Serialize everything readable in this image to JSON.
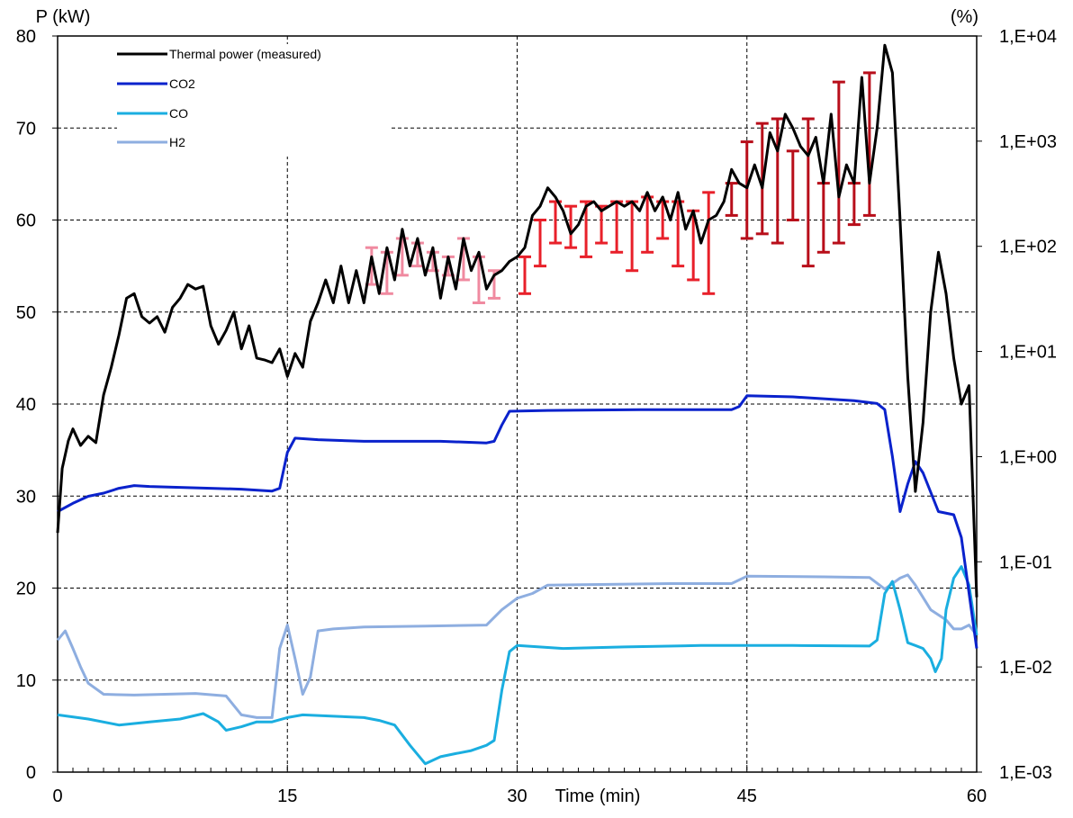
{
  "chart_data": {
    "type": "line",
    "y_left_label": "P (kW)",
    "y_right_label": "(%)",
    "x_label": "Time (min)",
    "xlim": [
      0,
      60
    ],
    "ylim_left": [
      0,
      80
    ],
    "ylim_right": [
      0.001,
      10000
    ],
    "y_right_scale": "log",
    "x_ticks": [
      "0",
      "15",
      "30",
      "45",
      "60"
    ],
    "y_left_ticks": [
      "0",
      "10",
      "20",
      "30",
      "40",
      "50",
      "60",
      "70",
      "80"
    ],
    "y_right_ticks": [
      "1,E-03",
      "1,E-02",
      "1,E-01",
      "1,E+00",
      "1,E+01",
      "1,E+02",
      "1,E+03",
      "1,E+04"
    ],
    "grid": "dashed at major x ticks and major left-y ticks",
    "legend_position": "top-left",
    "series": [
      {
        "name": "Thermal power (measured)",
        "color": "#000000",
        "axis": "left",
        "points": [
          [
            0,
            26
          ],
          [
            0.3,
            33
          ],
          [
            0.7,
            36
          ],
          [
            1,
            37.3
          ],
          [
            1.5,
            35.5
          ],
          [
            2,
            36.5
          ],
          [
            2.5,
            35.8
          ],
          [
            3,
            41
          ],
          [
            3.5,
            44
          ],
          [
            4,
            47.5
          ],
          [
            4.5,
            51.5
          ],
          [
            5,
            52
          ],
          [
            5.5,
            49.5
          ],
          [
            6,
            48.8
          ],
          [
            6.5,
            49.5
          ],
          [
            7,
            47.8
          ],
          [
            7.5,
            50.5
          ],
          [
            8,
            51.5
          ],
          [
            8.5,
            53
          ],
          [
            9,
            52.5
          ],
          [
            9.5,
            52.8
          ],
          [
            10,
            48.5
          ],
          [
            10.5,
            46.5
          ],
          [
            11,
            48
          ],
          [
            11.5,
            50
          ],
          [
            12,
            46
          ],
          [
            12.5,
            48.5
          ],
          [
            13,
            45
          ],
          [
            13.5,
            44.8
          ],
          [
            14,
            44.5
          ],
          [
            14.5,
            46
          ],
          [
            15,
            43
          ],
          [
            15.5,
            45.5
          ],
          [
            16,
            44
          ],
          [
            16.5,
            49
          ],
          [
            17,
            51
          ],
          [
            17.5,
            53.5
          ],
          [
            18,
            51
          ],
          [
            18.5,
            55
          ],
          [
            19,
            51
          ],
          [
            19.5,
            54.5
          ],
          [
            20,
            51
          ],
          [
            20.5,
            56
          ],
          [
            21,
            52
          ],
          [
            21.5,
            57
          ],
          [
            22,
            53.5
          ],
          [
            22.5,
            59
          ],
          [
            23,
            55
          ],
          [
            23.5,
            58
          ],
          [
            24,
            54
          ],
          [
            24.5,
            57
          ],
          [
            25,
            51.5
          ],
          [
            25.5,
            56
          ],
          [
            26,
            52.5
          ],
          [
            26.5,
            58
          ],
          [
            27,
            54.5
          ],
          [
            27.5,
            56.5
          ],
          [
            28,
            52.5
          ],
          [
            28.5,
            54
          ],
          [
            29,
            54.5
          ],
          [
            29.5,
            55.5
          ],
          [
            30,
            56
          ],
          [
            30.5,
            57
          ],
          [
            31,
            60.5
          ],
          [
            31.5,
            61.5
          ],
          [
            32,
            63.5
          ],
          [
            32.5,
            62.5
          ],
          [
            33,
            61
          ],
          [
            33.5,
            58.5
          ],
          [
            34,
            59.5
          ],
          [
            34.5,
            61.5
          ],
          [
            35,
            62
          ],
          [
            35.5,
            61
          ],
          [
            36,
            61.5
          ],
          [
            36.5,
            62
          ],
          [
            37,
            61.5
          ],
          [
            37.5,
            62
          ],
          [
            38,
            61
          ],
          [
            38.5,
            63
          ],
          [
            39,
            61
          ],
          [
            39.5,
            62.5
          ],
          [
            40,
            60
          ],
          [
            40.5,
            63
          ],
          [
            41,
            59
          ],
          [
            41.5,
            61
          ],
          [
            42,
            57.5
          ],
          [
            42.5,
            60
          ],
          [
            43,
            60.5
          ],
          [
            43.5,
            62
          ],
          [
            44,
            65.5
          ],
          [
            44.5,
            64
          ],
          [
            45,
            63.5
          ],
          [
            45.5,
            66
          ],
          [
            46,
            63.5
          ],
          [
            46.5,
            69.5
          ],
          [
            47,
            67.5
          ],
          [
            47.5,
            71.5
          ],
          [
            48,
            70
          ],
          [
            48.5,
            68
          ],
          [
            49,
            67
          ],
          [
            49.5,
            69
          ],
          [
            50,
            64
          ],
          [
            50.5,
            71.5
          ],
          [
            51,
            62.5
          ],
          [
            51.5,
            66
          ],
          [
            52,
            64
          ],
          [
            52.5,
            75.5
          ],
          [
            53,
            64
          ],
          [
            53.5,
            70
          ],
          [
            54,
            79
          ],
          [
            54.5,
            76
          ],
          [
            55,
            60
          ],
          [
            55.5,
            43
          ],
          [
            56,
            30.5
          ],
          [
            56.5,
            38
          ],
          [
            57,
            50
          ],
          [
            57.5,
            56.5
          ],
          [
            58,
            52
          ],
          [
            58.5,
            45
          ],
          [
            59,
            40
          ],
          [
            59.5,
            42
          ],
          [
            60,
            19
          ]
        ]
      },
      {
        "name": "CO2",
        "color": "#0a22cc",
        "axis": "right",
        "points": [
          [
            0,
            0.3
          ],
          [
            1,
            0.36
          ],
          [
            2,
            0.42
          ],
          [
            3,
            0.45
          ],
          [
            4,
            0.5
          ],
          [
            5,
            0.53
          ],
          [
            6,
            0.52
          ],
          [
            8,
            0.51
          ],
          [
            10,
            0.5
          ],
          [
            12,
            0.49
          ],
          [
            14,
            0.47
          ],
          [
            14.5,
            0.5
          ],
          [
            15,
            1.1
          ],
          [
            15.5,
            1.5
          ],
          [
            17,
            1.45
          ],
          [
            20,
            1.4
          ],
          [
            25,
            1.4
          ],
          [
            28,
            1.35
          ],
          [
            28.5,
            1.4
          ],
          [
            29,
            2
          ],
          [
            29.5,
            2.7
          ],
          [
            32,
            2.75
          ],
          [
            38,
            2.8
          ],
          [
            44,
            2.8
          ],
          [
            44.5,
            3
          ],
          [
            45,
            3.8
          ],
          [
            48,
            3.7
          ],
          [
            52,
            3.4
          ],
          [
            53.5,
            3.2
          ],
          [
            54,
            2.8
          ],
          [
            54.5,
            1
          ],
          [
            55,
            0.3
          ],
          [
            55.5,
            0.55
          ],
          [
            56,
            0.9
          ],
          [
            56.5,
            0.7
          ],
          [
            57.5,
            0.3
          ],
          [
            58.5,
            0.28
          ],
          [
            59,
            0.17
          ],
          [
            60,
            0.015
          ]
        ]
      },
      {
        "name": "CO",
        "color": "#1aaee0",
        "axis": "right",
        "points": [
          [
            0,
            0.0035
          ],
          [
            2,
            0.0032
          ],
          [
            4,
            0.0028
          ],
          [
            6,
            0.003
          ],
          [
            8,
            0.0032
          ],
          [
            9.5,
            0.0036
          ],
          [
            10.5,
            0.003
          ],
          [
            11,
            0.0025
          ],
          [
            12,
            0.0027
          ],
          [
            13,
            0.003
          ],
          [
            14,
            0.003
          ],
          [
            15,
            0.0033
          ],
          [
            16,
            0.0035
          ],
          [
            18,
            0.0034
          ],
          [
            20,
            0.0033
          ],
          [
            21,
            0.0031
          ],
          [
            22,
            0.0028
          ],
          [
            23,
            0.0018
          ],
          [
            24,
            0.0012
          ],
          [
            25,
            0.0014
          ],
          [
            26,
            0.0015
          ],
          [
            27,
            0.0016
          ],
          [
            28,
            0.0018
          ],
          [
            28.5,
            0.002
          ],
          [
            29,
            0.006
          ],
          [
            29.5,
            0.014
          ],
          [
            30,
            0.016
          ],
          [
            33,
            0.015
          ],
          [
            37,
            0.0155
          ],
          [
            42,
            0.016
          ],
          [
            48,
            0.016
          ],
          [
            53,
            0.0158
          ],
          [
            53.5,
            0.018
          ],
          [
            54,
            0.05
          ],
          [
            54.5,
            0.065
          ],
          [
            55,
            0.035
          ],
          [
            55.5,
            0.017
          ],
          [
            56,
            0.016
          ],
          [
            56.5,
            0.015
          ],
          [
            57,
            0.012
          ],
          [
            57.3,
            0.009
          ],
          [
            57.7,
            0.012
          ],
          [
            58,
            0.035
          ],
          [
            58.5,
            0.07
          ],
          [
            59,
            0.09
          ],
          [
            59.5,
            0.06
          ],
          [
            60,
            0.02
          ]
        ]
      },
      {
        "name": "H2",
        "color": "#8eaee0",
        "axis": "right",
        "points": [
          [
            0,
            0.018
          ],
          [
            0.5,
            0.022
          ],
          [
            1,
            0.015
          ],
          [
            1.5,
            0.01
          ],
          [
            2,
            0.007
          ],
          [
            3,
            0.0055
          ],
          [
            5,
            0.0054
          ],
          [
            7,
            0.0055
          ],
          [
            9,
            0.0056
          ],
          [
            11,
            0.0053
          ],
          [
            12,
            0.0035
          ],
          [
            13,
            0.0033
          ],
          [
            14,
            0.0033
          ],
          [
            14.5,
            0.015
          ],
          [
            15,
            0.025
          ],
          [
            15.5,
            0.012
          ],
          [
            16,
            0.0055
          ],
          [
            16.5,
            0.008
          ],
          [
            17,
            0.022
          ],
          [
            18,
            0.023
          ],
          [
            20,
            0.024
          ],
          [
            24,
            0.0245
          ],
          [
            28,
            0.025
          ],
          [
            29,
            0.035
          ],
          [
            30,
            0.045
          ],
          [
            31,
            0.05
          ],
          [
            32,
            0.06
          ],
          [
            36,
            0.061
          ],
          [
            40,
            0.062
          ],
          [
            44,
            0.062
          ],
          [
            45,
            0.073
          ],
          [
            50,
            0.072
          ],
          [
            53,
            0.071
          ],
          [
            54,
            0.055
          ],
          [
            55,
            0.07
          ],
          [
            55.5,
            0.075
          ],
          [
            56,
            0.06
          ],
          [
            57,
            0.035
          ],
          [
            58,
            0.028
          ],
          [
            58.5,
            0.023
          ],
          [
            59,
            0.023
          ],
          [
            59.5,
            0.025
          ],
          [
            60,
            0.02
          ]
        ]
      }
    ],
    "error_bars": [
      {
        "color": "#f08aa0",
        "ranges": [
          [
            20.5,
            53,
            57
          ],
          [
            21.5,
            52,
            56.5
          ],
          [
            22.5,
            54,
            58
          ],
          [
            23.5,
            55,
            57.5
          ],
          [
            24.5,
            54.5,
            56.5
          ],
          [
            25.5,
            54,
            56
          ],
          [
            26.5,
            53.5,
            58
          ],
          [
            27.5,
            51,
            56
          ],
          [
            28.5,
            51.5,
            54.5
          ]
        ]
      },
      {
        "color": "#e8202a",
        "ranges": [
          [
            30.5,
            52,
            56
          ],
          [
            31.5,
            55,
            60
          ],
          [
            32.5,
            57.5,
            62
          ],
          [
            33.5,
            57,
            61.5
          ],
          [
            34.5,
            56,
            62
          ],
          [
            35.5,
            57.5,
            61.5
          ],
          [
            36.5,
            56.5,
            62
          ],
          [
            37.5,
            54.5,
            62
          ],
          [
            38.5,
            56.5,
            62.5
          ],
          [
            39.5,
            58,
            62
          ],
          [
            40.5,
            55,
            62
          ],
          [
            41.5,
            53.5,
            61
          ],
          [
            42.5,
            52,
            63
          ]
        ]
      },
      {
        "color": "#b80e1a",
        "ranges": [
          [
            44,
            60.5,
            64
          ],
          [
            45,
            58,
            68.5
          ],
          [
            46,
            58.5,
            70.5
          ],
          [
            47,
            57.5,
            71
          ],
          [
            48,
            60,
            67.5
          ],
          [
            49,
            55,
            71
          ],
          [
            50,
            56.5,
            64
          ],
          [
            51,
            57.5,
            75
          ],
          [
            52,
            59.5,
            64
          ],
          [
            53,
            60.5,
            76
          ]
        ]
      }
    ]
  }
}
